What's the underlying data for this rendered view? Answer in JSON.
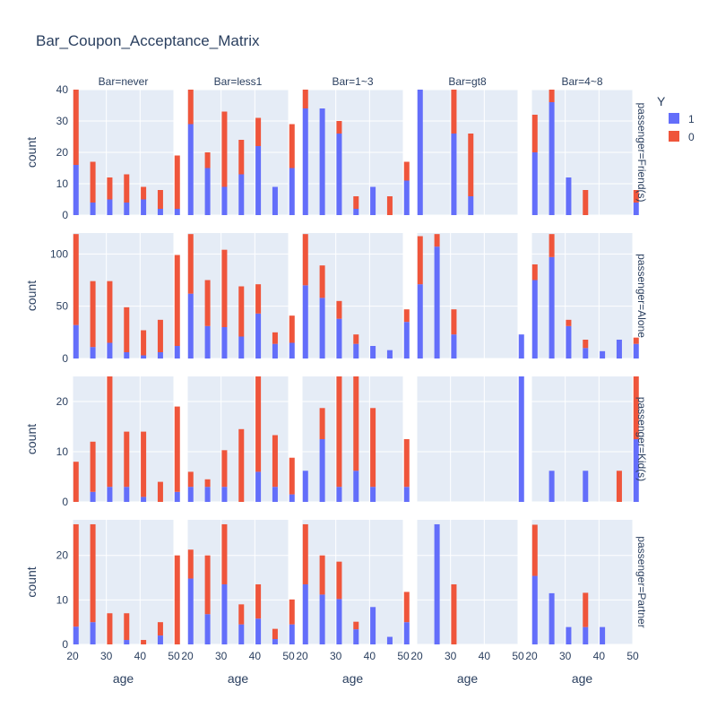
{
  "chart_data": {
    "type": "bar",
    "title": "Bar_Coupon_Acceptance_Matrix",
    "xlabel": "age",
    "ylabel": "count",
    "legend": {
      "title": "Y",
      "placement": "top-right",
      "entries": [
        "1",
        "0"
      ]
    },
    "colors": {
      "1": "#636efa",
      "0": "#ef553b",
      "panel_bg": "#e5ecf6",
      "grid": "#ffffff",
      "text": "#2a3f5f"
    },
    "columns": [
      "Bar=never",
      "Bar=less1",
      "Bar=1~3",
      "Bar=gt8",
      "Bar=4~8"
    ],
    "rows": [
      "passenger=Friend(s)",
      "passenger=Alone",
      "passenger=Kid(s)",
      "passenger=Partner"
    ],
    "xlim": [
      20,
      50
    ],
    "x_ticks": [
      20,
      30,
      40,
      50
    ],
    "x_bins": [
      21,
      26,
      31,
      36,
      41,
      46,
      51
    ],
    "row_axes": [
      {
        "ylim": [
          0,
          40
        ],
        "ticks": [
          0,
          10,
          20,
          30,
          40
        ]
      },
      {
        "ylim": [
          0,
          120
        ],
        "ticks": [
          0,
          50,
          100
        ]
      },
      {
        "ylim": [
          0,
          25
        ],
        "ticks": [
          0,
          10,
          20
        ]
      },
      {
        "ylim": [
          0,
          28
        ],
        "ticks": [
          0,
          10,
          20
        ]
      }
    ],
    "panels": [
      [
        {
          "y1": [
            16,
            4,
            5,
            4,
            5,
            2,
            2
          ],
          "y0": [
            24,
            13,
            7,
            9,
            4,
            6,
            17
          ]
        },
        {
          "y1": [
            29,
            15,
            9,
            13,
            22,
            9,
            15
          ],
          "y0": [
            11,
            5,
            24,
            11,
            9,
            0,
            14
          ]
        },
        {
          "y1": [
            34,
            34,
            26,
            2,
            9,
            0,
            11
          ],
          "y0": [
            6,
            0,
            4,
            4,
            0,
            6,
            6
          ]
        },
        {
          "y1": [
            40,
            0,
            26,
            6,
            0,
            0,
            0
          ],
          "y0": [
            0,
            0,
            14,
            20,
            0,
            0,
            0
          ]
        },
        {
          "y1": [
            20,
            36,
            12,
            0,
            0,
            0,
            4
          ],
          "y0": [
            12,
            4,
            0,
            8,
            0,
            0,
            4
          ]
        }
      ],
      [
        {
          "y1": [
            32,
            11,
            15,
            6,
            3,
            6,
            12
          ],
          "y0": [
            87,
            63,
            59,
            43,
            24,
            31,
            87
          ]
        },
        {
          "y1": [
            62,
            31,
            30,
            21,
            43,
            14,
            15
          ],
          "y0": [
            57,
            44,
            74,
            48,
            28,
            11,
            26
          ]
        },
        {
          "y1": [
            70,
            58,
            38,
            14,
            12,
            8,
            35
          ],
          "y0": [
            49,
            31,
            17,
            9,
            0,
            0,
            12
          ]
        },
        {
          "y1": [
            71,
            107,
            23,
            0,
            0,
            0,
            23
          ],
          "y0": [
            46,
            12,
            24,
            0,
            0,
            0,
            0
          ]
        },
        {
          "y1": [
            75,
            97,
            31,
            10,
            7,
            18,
            14
          ],
          "y0": [
            15,
            22,
            6,
            8,
            0,
            0,
            6
          ]
        }
      ],
      [
        {
          "y1": [
            0,
            2,
            3,
            3,
            1,
            0,
            2
          ],
          "y0": [
            8,
            10,
            22,
            11,
            13,
            4,
            17
          ]
        },
        {
          "y1": [
            3,
            3,
            3,
            0,
            6,
            3,
            1.5
          ],
          "y0": [
            3,
            1.5,
            7.3,
            14.5,
            19,
            10.3,
            7.3
          ]
        },
        {
          "y1": [
            6.2,
            12.5,
            3,
            6.2,
            3,
            0,
            3
          ],
          "y0": [
            0,
            6.2,
            22,
            18.8,
            15.7,
            0,
            9.5
          ]
        },
        {
          "y1": [
            0,
            0,
            0,
            0,
            0,
            0,
            25
          ],
          "y0": [
            0,
            0,
            0,
            0,
            0,
            0,
            0
          ]
        },
        {
          "y1": [
            0,
            6.2,
            0,
            6.2,
            0,
            0,
            12.5
          ],
          "y0": [
            0,
            0,
            0,
            0,
            0,
            6.2,
            12.5
          ]
        }
      ],
      [
        {
          "y1": [
            4,
            5,
            0,
            1,
            0,
            2,
            0
          ],
          "y0": [
            23,
            22,
            7,
            6,
            1,
            3,
            20
          ]
        },
        {
          "y1": [
            14.8,
            6.8,
            13.5,
            4.5,
            5.8,
            1.2,
            4.5
          ],
          "y0": [
            6.5,
            13.2,
            13.5,
            4.5,
            7.7,
            2.3,
            5.6
          ]
        },
        {
          "y1": [
            13.5,
            11.2,
            10.2,
            3.4,
            8.4,
            1.7,
            5
          ],
          "y0": [
            13.5,
            8.8,
            8.4,
            1.7,
            0,
            0,
            6.8
          ]
        },
        {
          "y1": [
            0,
            27,
            0,
            0,
            0,
            0,
            0
          ],
          "y0": [
            0,
            0,
            13.5,
            0,
            0,
            0,
            0
          ]
        },
        {
          "y1": [
            15.4,
            11.5,
            3.9,
            3.9,
            3.9,
            0,
            0
          ],
          "y0": [
            11.5,
            0,
            0,
            7.7,
            0,
            0,
            0
          ]
        }
      ]
    ]
  }
}
